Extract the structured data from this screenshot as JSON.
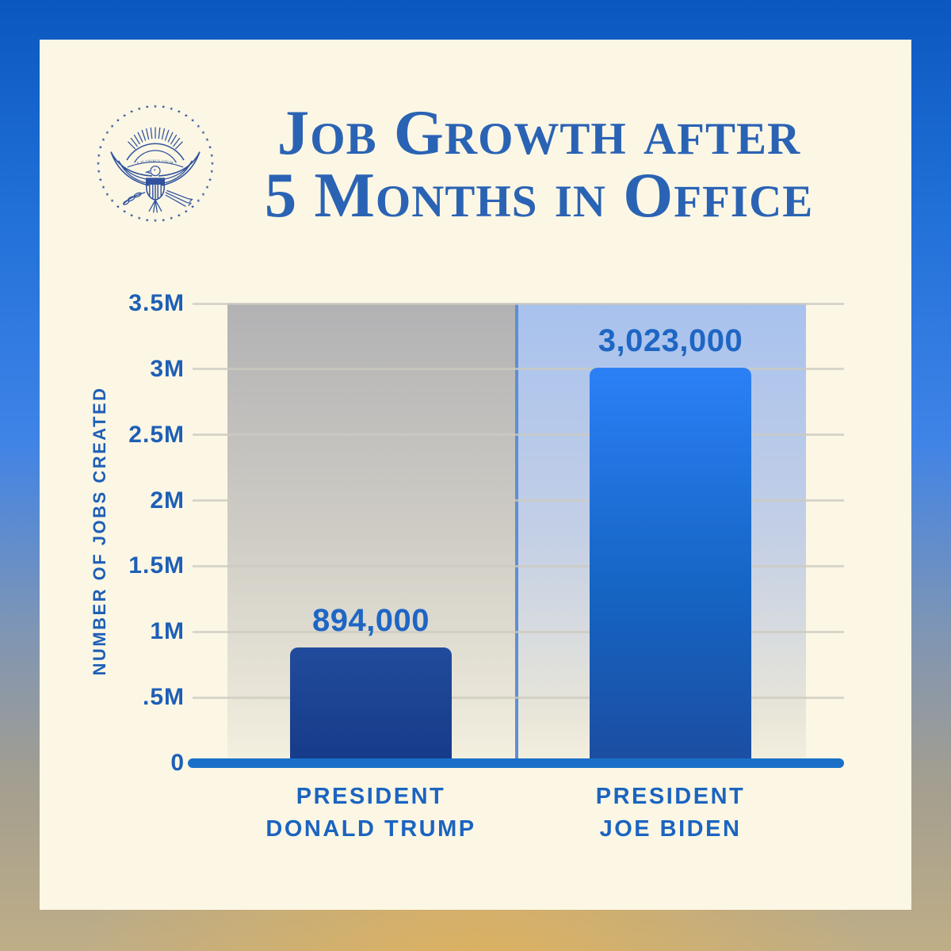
{
  "header": {
    "title_line1": "Job Growth after",
    "title_line2": "5 Months in Office",
    "seal": {
      "name": "presidential-seal",
      "motto": "E PLURIBUS UNUM"
    }
  },
  "chart_data": {
    "type": "bar",
    "title": "Job Growth after 5 Months in Office",
    "xlabel": "",
    "ylabel": "NUMBER OF JOBS CREATED",
    "ylim": [
      0,
      3500000
    ],
    "grid": true,
    "legend": false,
    "yticks": [
      {
        "label": "0",
        "value": 0
      },
      {
        "label": ".5M",
        "value": 500000
      },
      {
        "label": "1M",
        "value": 1000000
      },
      {
        "label": "1.5M",
        "value": 1500000
      },
      {
        "label": "2M",
        "value": 2000000
      },
      {
        "label": "2.5M",
        "value": 2500000
      },
      {
        "label": "3M",
        "value": 3000000
      },
      {
        "label": "3.5M",
        "value": 3500000
      }
    ],
    "bars": [
      {
        "category_line1": "PRESIDENT",
        "category_line2": "DONALD TRUMP",
        "value": 894000,
        "value_label": "894,000"
      },
      {
        "category_line1": "PRESIDENT",
        "category_line2": "JOE BIDEN",
        "value": 3023000,
        "value_label": "3,023,000"
      }
    ]
  },
  "colors": {
    "card_bg": "#fcf7e5",
    "title_blue": "#2b63b4",
    "label_blue": "#1e66c4",
    "axis_blue": "#1a70c9",
    "bar_trump": "#1b4290",
    "bar_biden_top": "#2c80f6",
    "bar_biden_bottom": "#1c4da1",
    "panel_trump_top": "#b2b2b4",
    "panel_biden_top": "#a8c2ee",
    "gridline": "#ccc9bf",
    "bg_top": "#0b57c0",
    "bg_bottom_gold": "#e0b25c"
  }
}
